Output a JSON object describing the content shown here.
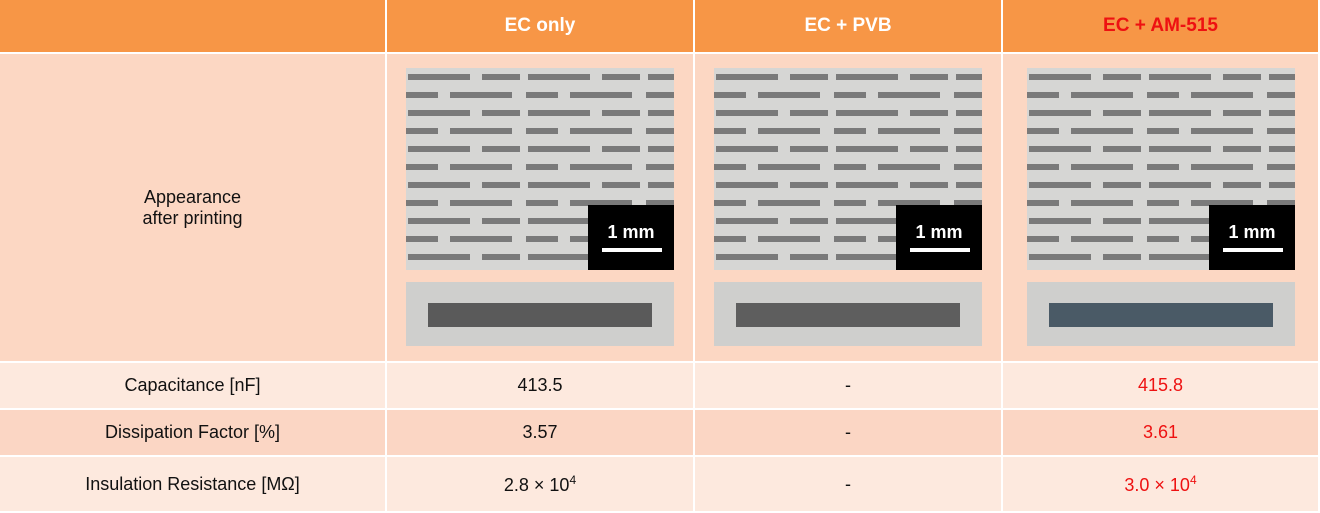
{
  "table": {
    "header": [
      "EC only",
      "EC + PVB",
      "EC + AM-515"
    ],
    "appearance_label": [
      "Appearance",
      "after printing"
    ],
    "scale_bar": "1 mm",
    "rows": [
      {
        "label": "Capacitance [nF]",
        "cells": [
          "413.5",
          "-",
          "415.8"
        ]
      },
      {
        "label": "Dissipation Factor [%]",
        "cells": [
          "3.57",
          "-",
          "3.61"
        ]
      },
      {
        "label": "Insulation Resistance [MΩ]",
        "cells": [
          {
            "base": "2.8 × 10",
            "exp": "4"
          },
          "-",
          {
            "base": "3.0 × 10",
            "exp": "4"
          }
        ]
      }
    ]
  }
}
